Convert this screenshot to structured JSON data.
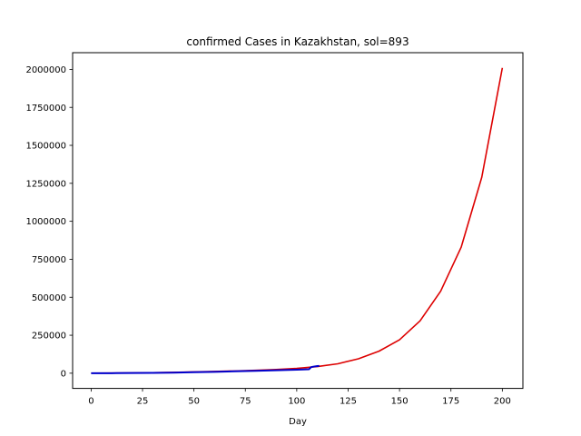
{
  "chart_data": {
    "type": "line",
    "title": "confirmed Cases in Kazakhstan, sol=893",
    "xlabel": "Day",
    "ylabel": "",
    "xlim": [
      -9,
      210
    ],
    "ylim": [
      -100000,
      2110000
    ],
    "xticks": [
      0,
      25,
      50,
      75,
      100,
      125,
      150,
      175,
      200
    ],
    "yticks": [
      0,
      250000,
      500000,
      750000,
      1000000,
      1250000,
      1500000,
      1750000,
      2000000
    ],
    "grid": false,
    "legend": "none",
    "series": [
      {
        "color": "#dd0000",
        "x": [
          0,
          10,
          20,
          30,
          40,
          50,
          60,
          70,
          80,
          90,
          100,
          110,
          120,
          130,
          140,
          150,
          160,
          170,
          180,
          190,
          200
        ],
        "y": [
          800,
          1300,
          2100,
          3400,
          5500,
          8700,
          11500,
          15000,
          19000,
          24000,
          32000,
          44000,
          62000,
          95000,
          145000,
          220000,
          345000,
          540000,
          830000,
          1290000,
          2010000
        ]
      },
      {
        "color": "#0000cc",
        "x": [
          0,
          10,
          20,
          30,
          40,
          50,
          60,
          70,
          80,
          90,
          100,
          106,
          107,
          108,
          110,
          111
        ],
        "y": [
          0,
          300,
          1200,
          2500,
          4000,
          6500,
          9000,
          12500,
          16000,
          19500,
          23500,
          26500,
          40000,
          43000,
          47000,
          48000
        ]
      }
    ]
  }
}
